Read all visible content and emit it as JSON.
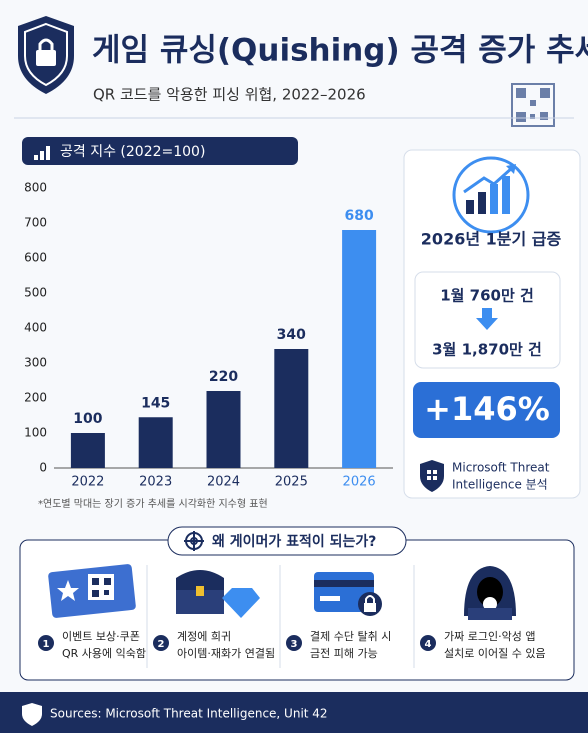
{
  "header": {
    "title": "게임 큐싱(Quishing) 공격 증가 추세",
    "subtitle": "QR 코드를 악용한 피싱 위협, 2022–2026"
  },
  "chart_data": {
    "type": "bar",
    "title": "공격 지수 (2022=100)",
    "categories": [
      "2022",
      "2023",
      "2024",
      "2025",
      "2026"
    ],
    "values": [
      100,
      145,
      220,
      340,
      680
    ],
    "colors": [
      "#1b2d5e",
      "#1b2d5e",
      "#1b2d5e",
      "#1b2d5e",
      "#3d8ef0"
    ],
    "ylim": [
      0,
      800
    ],
    "yticks": [
      0,
      100,
      200,
      300,
      400,
      500,
      600,
      700,
      800
    ],
    "grid": false,
    "note": "*연도별 막대는 장기 증가 추세를 시각화한 지수형 표현"
  },
  "highlight": {
    "title": "2026년 1분기 급증",
    "from": "1월 760만 건",
    "to": "3월 1,870만 건",
    "change": "+146%",
    "source": [
      "Microsoft Threat",
      "Intelligence 분석"
    ]
  },
  "reasons": {
    "title": "왜 게이머가 표적이 되는가?",
    "items": [
      {
        "number": "1",
        "lines": [
          "이벤트 보상·쿠폰",
          "QR 사용에 익숙함"
        ]
      },
      {
        "number": "2",
        "lines": [
          "계정에 희귀",
          "아이템·재화가 연결됨"
        ]
      },
      {
        "number": "3",
        "lines": [
          "결제 수단 탈취 시",
          "금전 피해 가능"
        ]
      },
      {
        "number": "4",
        "lines": [
          "가짜 로그인·악성 앱",
          "설치로 이어질 수 있음"
        ]
      }
    ]
  },
  "footer": {
    "text": "Sources: Microsoft Threat Intelligence, Unit 42"
  }
}
